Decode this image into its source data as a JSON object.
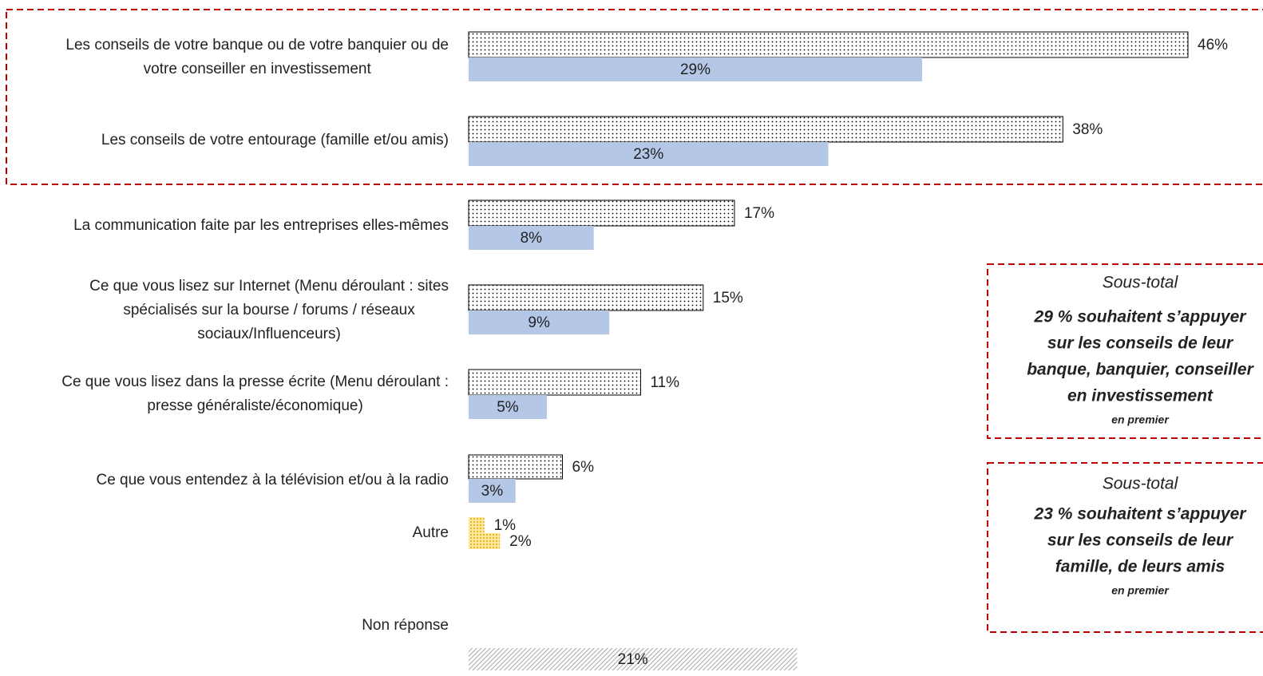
{
  "chart_data": {
    "type": "bar",
    "orientation": "horizontal",
    "categories": [
      [
        "Les conseils de votre banque ou de votre banquier ou de",
        "votre conseiller en investissement"
      ],
      [
        "Les conseils de votre entourage (famille et/ou amis)"
      ],
      [
        "La communication faite par les entreprises elles-mêmes"
      ],
      [
        "Ce que vous lisez sur Internet (Menu déroulant : sites",
        "spécialisés sur la bourse / forums / réseaux",
        "sociaux/Influenceurs)"
      ],
      [
        "Ce que vous lisez dans la presse écrite (Menu déroulant :",
        "presse généraliste/économique)"
      ],
      [
        "Ce que vous entendez à la télévision et/ou à la radio"
      ],
      [
        "Autre"
      ],
      [
        "Non réponse"
      ]
    ],
    "series": [
      {
        "color": "#000000",
        "point_colors": [
          null,
          null,
          null,
          null,
          null,
          null,
          "#f2c200",
          "#a6a6a6"
        ],
        "values": [
          46,
          38,
          17,
          15,
          11,
          6,
          1,
          21
        ],
        "value_labels": [
          "46%",
          "38%",
          "17%",
          "15%",
          "11%",
          "6%",
          "1%",
          "21%"
        ]
      },
      {
        "color": "#b4c7e7",
        "point_colors": [
          null,
          null,
          null,
          null,
          null,
          null,
          "#f2c200",
          null
        ],
        "values": [
          29,
          23,
          8,
          9,
          5,
          3,
          2,
          null
        ],
        "value_labels": [
          "29%",
          "23%",
          "8%",
          "9%",
          "5%",
          "3%",
          "2%",
          null
        ]
      }
    ],
    "xlim": [
      0,
      46
    ],
    "annotations": [
      {
        "lines": [
          "Sous-total",
          "29 % souhaitent s’appuyer",
          "sur les conseils de leur",
          "banque, banquier, conseiller",
          "en investissement",
          "en premier"
        ]
      },
      {
        "lines": [
          "Sous-total",
          "23 % souhaitent s’appuyer",
          "sur les conseils de leur",
          "famille, de leurs amis",
          "en premier"
        ]
      }
    ]
  }
}
